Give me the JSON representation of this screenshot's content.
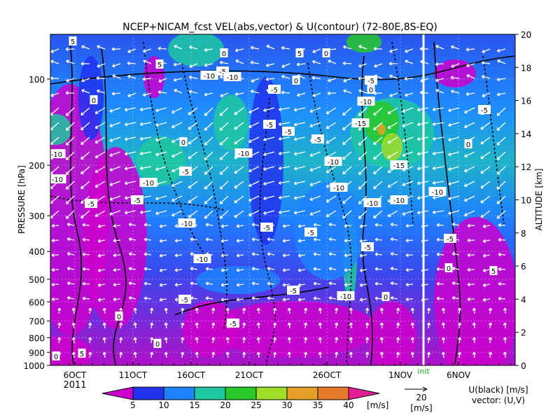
{
  "chart_data": {
    "type": "heatmap",
    "title": "NCEP+NICAM_fcst VEL(abs,vector) & U(contour)   (72-80E,8S-EQ)",
    "ylabel_left": "PRESSURE [hPa]",
    "ylabel_right": "ALTITUDE [km]",
    "y_left_ticks": [
      "100",
      "200",
      "300",
      "400",
      "500",
      "600",
      "700",
      "800",
      "900",
      "1000"
    ],
    "y_right_ticks": [
      "0",
      "2",
      "4",
      "6",
      "8",
      "10",
      "12",
      "14",
      "16",
      "18",
      "20"
    ],
    "x_ticks": [
      "6OCT",
      "11OCT",
      "16OCT",
      "21OCT",
      "26OCT",
      "1NOV",
      "6NOV"
    ],
    "x_year": "2011",
    "init_label": "init",
    "colorbar": {
      "ticks": [
        "5",
        "10",
        "15",
        "20",
        "25",
        "30",
        "35",
        "40"
      ],
      "unit": "[m/s]",
      "colors": [
        "#cc00cc",
        "#2233ee",
        "#1e82ff",
        "#1ec8a0",
        "#28c828",
        "#a0dc28",
        "#e6a028",
        "#e6782a",
        "#e61e96"
      ]
    },
    "vector_ref": {
      "value": "20",
      "unit": "[m/s]"
    },
    "legend_right": [
      "U(black) [m/s]",
      "vector: (U,V)"
    ],
    "contour_labels": [
      "5",
      "0",
      "-5",
      "-10",
      "-15"
    ],
    "speed_profile_by_level": [
      {
        "altitude_km": 20,
        "speed_ms": 10
      },
      {
        "altitude_km": 18,
        "speed_ms": 10
      },
      {
        "altitude_km": 16,
        "speed_ms": 12
      },
      {
        "altitude_km": 14,
        "speed_ms": 15
      },
      {
        "altitude_km": 12,
        "speed_ms": 17
      },
      {
        "altitude_km": 10,
        "speed_ms": 14
      },
      {
        "altitude_km": 8,
        "speed_ms": 10
      },
      {
        "altitude_km": 6,
        "speed_ms": 8
      },
      {
        "altitude_km": 4,
        "speed_ms": 6
      },
      {
        "altitude_km": 2,
        "speed_ms": 5
      },
      {
        "altitude_km": 0,
        "speed_ms": 4
      }
    ]
  }
}
